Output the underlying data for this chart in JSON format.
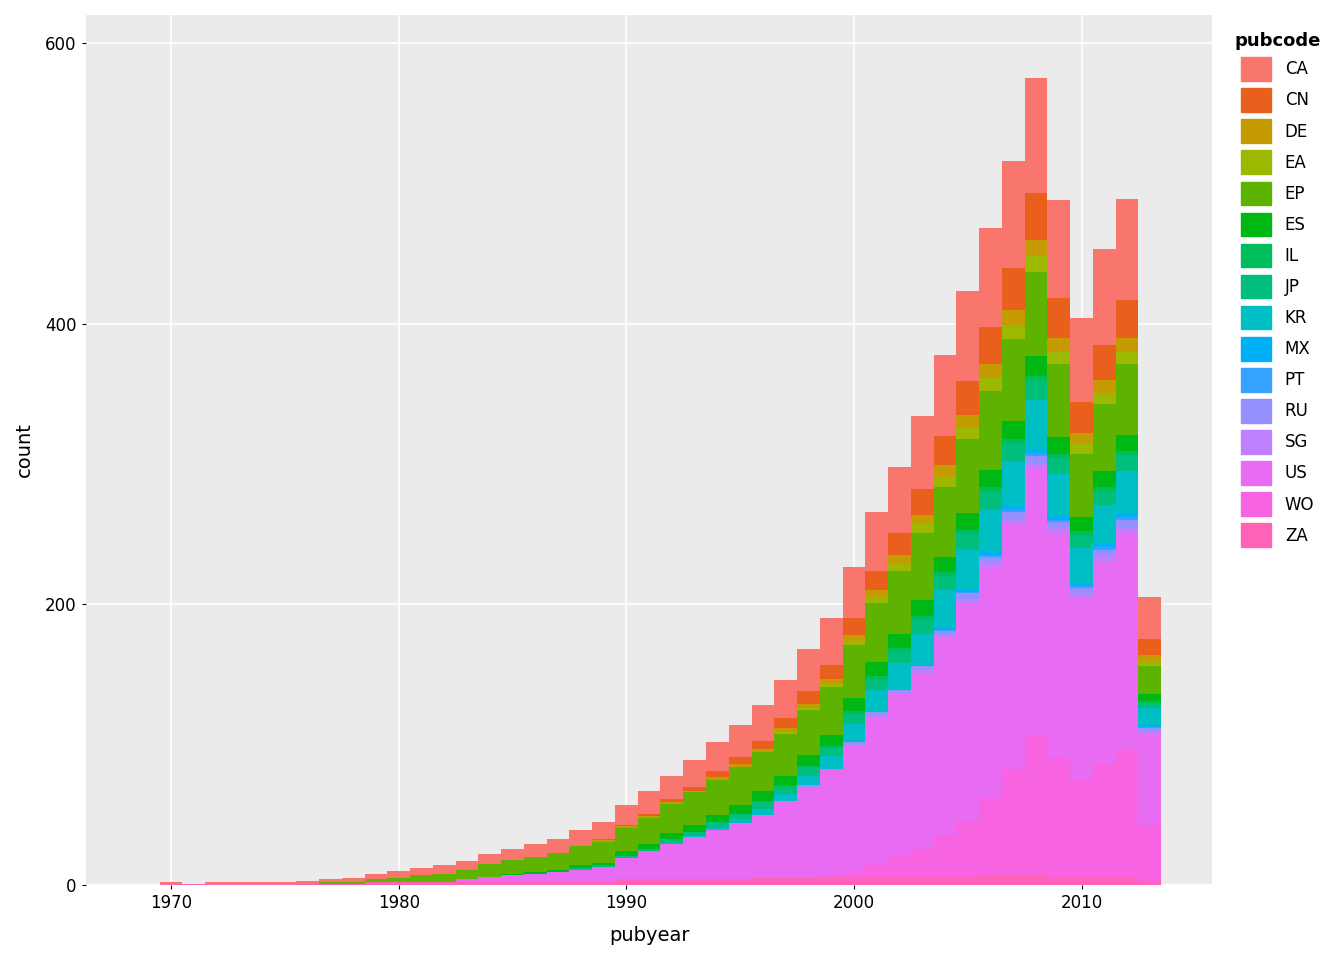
{
  "xlabel": "pubyear",
  "ylabel": "count",
  "legend_title": "pubcode",
  "plot_bg": "#EBEBEB",
  "grid_color": "#FFFFFF",
  "pubcodes_legend_order": [
    "CA",
    "CN",
    "DE",
    "EA",
    "EP",
    "ES",
    "IL",
    "JP",
    "KR",
    "MX",
    "PT",
    "RU",
    "SG",
    "US",
    "WO",
    "ZA"
  ],
  "pubcodes_stack_order": [
    "ZA",
    "WO",
    "US",
    "SG",
    "RU",
    "PT",
    "MX",
    "KR",
    "JP",
    "IL",
    "ES",
    "EP",
    "EA",
    "DE",
    "CN",
    "CA"
  ],
  "colors": {
    "CA": "#F8766D",
    "CN": "#E8601C",
    "DE": "#C49B00",
    "EA": "#9CB800",
    "EP": "#5EB300",
    "ES": "#00B813",
    "IL": "#00BD5C",
    "JP": "#00BF7D",
    "KR": "#00BFC4",
    "MX": "#00B0F6",
    "PT": "#35A2FF",
    "RU": "#9590FF",
    "SG": "#BF80FF",
    "US": "#E76BF3",
    "WO": "#F763E0",
    "ZA": "#FF63B6"
  },
  "years": [
    1969,
    1970,
    1971,
    1972,
    1973,
    1974,
    1975,
    1976,
    1977,
    1978,
    1979,
    1980,
    1981,
    1982,
    1983,
    1984,
    1985,
    1986,
    1987,
    1988,
    1989,
    1990,
    1991,
    1992,
    1993,
    1994,
    1995,
    1996,
    1997,
    1998,
    1999,
    2000,
    2001,
    2002,
    2003,
    2004,
    2005,
    2006,
    2007,
    2008,
    2009,
    2010,
    2011,
    2012,
    2013
  ],
  "data": {
    "ZA": [
      0,
      1,
      1,
      1,
      1,
      1,
      1,
      1,
      1,
      1,
      2,
      2,
      2,
      2,
      2,
      3,
      3,
      3,
      3,
      3,
      3,
      4,
      4,
      4,
      4,
      4,
      4,
      5,
      5,
      5,
      5,
      5,
      5,
      6,
      6,
      6,
      6,
      7,
      7,
      7,
      6,
      5,
      6,
      6,
      3
    ],
    "WO": [
      0,
      0,
      0,
      0,
      0,
      0,
      0,
      0,
      0,
      0,
      0,
      0,
      0,
      0,
      0,
      0,
      0,
      0,
      0,
      0,
      0,
      0,
      0,
      0,
      0,
      0,
      0,
      0,
      0,
      0,
      2,
      5,
      10,
      15,
      20,
      30,
      40,
      55,
      75,
      100,
      85,
      70,
      80,
      90,
      40
    ],
    "US": [
      0,
      0,
      0,
      0,
      0,
      0,
      0,
      0,
      0,
      0,
      0,
      0,
      0,
      0,
      2,
      3,
      4,
      5,
      6,
      8,
      10,
      15,
      20,
      25,
      30,
      35,
      40,
      45,
      55,
      65,
      75,
      90,
      105,
      115,
      125,
      140,
      155,
      165,
      175,
      190,
      160,
      130,
      145,
      155,
      65
    ],
    "SG": [
      0,
      0,
      0,
      0,
      0,
      0,
      0,
      0,
      0,
      0,
      0,
      0,
      0,
      0,
      0,
      0,
      0,
      0,
      0,
      0,
      0,
      0,
      0,
      0,
      0,
      0,
      0,
      0,
      0,
      0,
      0,
      0,
      1,
      1,
      2,
      2,
      3,
      3,
      4,
      4,
      4,
      3,
      4,
      4,
      2
    ],
    "RU": [
      0,
      0,
      0,
      0,
      0,
      0,
      0,
      0,
      0,
      0,
      0,
      0,
      0,
      0,
      0,
      0,
      0,
      0,
      0,
      0,
      0,
      0,
      0,
      0,
      0,
      0,
      0,
      0,
      0,
      1,
      1,
      2,
      2,
      2,
      3,
      3,
      4,
      4,
      5,
      5,
      4,
      4,
      4,
      5,
      2
    ],
    "PT": [
      0,
      0,
      0,
      0,
      0,
      0,
      0,
      0,
      0,
      0,
      0,
      0,
      0,
      0,
      0,
      0,
      0,
      0,
      0,
      0,
      0,
      0,
      0,
      0,
      0,
      0,
      0,
      0,
      0,
      0,
      0,
      0,
      0,
      0,
      0,
      1,
      1,
      1,
      1,
      2,
      1,
      1,
      2,
      2,
      1
    ],
    "MX": [
      0,
      0,
      0,
      0,
      0,
      0,
      0,
      0,
      0,
      0,
      0,
      0,
      0,
      0,
      0,
      0,
      0,
      0,
      0,
      0,
      0,
      0,
      0,
      0,
      0,
      0,
      0,
      0,
      0,
      0,
      0,
      1,
      1,
      1,
      1,
      2,
      2,
      3,
      3,
      3,
      3,
      2,
      2,
      3,
      1
    ],
    "KR": [
      0,
      0,
      0,
      0,
      0,
      0,
      0,
      0,
      0,
      0,
      0,
      0,
      0,
      0,
      0,
      0,
      0,
      0,
      0,
      0,
      0,
      0,
      0,
      1,
      1,
      2,
      3,
      4,
      5,
      7,
      9,
      12,
      15,
      18,
      22,
      26,
      28,
      30,
      32,
      35,
      30,
      25,
      28,
      30,
      12
    ],
    "JP": [
      0,
      0,
      0,
      0,
      0,
      0,
      0,
      0,
      0,
      0,
      0,
      0,
      0,
      0,
      0,
      0,
      0,
      0,
      0,
      1,
      1,
      2,
      2,
      3,
      3,
      4,
      4,
      5,
      5,
      6,
      6,
      7,
      8,
      9,
      10,
      10,
      11,
      12,
      12,
      13,
      11,
      9,
      10,
      11,
      4
    ],
    "IL": [
      0,
      0,
      0,
      0,
      0,
      0,
      0,
      0,
      0,
      0,
      0,
      0,
      0,
      0,
      0,
      0,
      0,
      0,
      0,
      0,
      0,
      0,
      0,
      0,
      0,
      0,
      0,
      1,
      1,
      1,
      1,
      2,
      2,
      2,
      3,
      3,
      3,
      4,
      4,
      4,
      3,
      3,
      3,
      3,
      1
    ],
    "ES": [
      0,
      0,
      0,
      0,
      0,
      0,
      0,
      0,
      0,
      0,
      0,
      0,
      0,
      0,
      0,
      0,
      1,
      1,
      2,
      2,
      2,
      3,
      3,
      4,
      5,
      5,
      6,
      7,
      7,
      8,
      8,
      9,
      10,
      10,
      11,
      11,
      12,
      12,
      13,
      14,
      12,
      10,
      11,
      12,
      5
    ],
    "EP": [
      0,
      0,
      0,
      0,
      0,
      0,
      0,
      0,
      1,
      1,
      2,
      3,
      5,
      6,
      7,
      9,
      10,
      11,
      12,
      14,
      15,
      17,
      19,
      21,
      23,
      25,
      27,
      28,
      30,
      32,
      34,
      38,
      42,
      45,
      48,
      50,
      53,
      56,
      58,
      60,
      52,
      45,
      48,
      50,
      20
    ],
    "EA": [
      0,
      0,
      0,
      0,
      0,
      0,
      0,
      0,
      0,
      0,
      0,
      0,
      0,
      0,
      0,
      0,
      0,
      0,
      0,
      0,
      0,
      0,
      0,
      0,
      0,
      0,
      0,
      0,
      1,
      1,
      2,
      3,
      4,
      5,
      6,
      7,
      8,
      9,
      10,
      11,
      9,
      7,
      8,
      9,
      4
    ],
    "DE": [
      0,
      0,
      0,
      0,
      0,
      0,
      0,
      0,
      0,
      0,
      0,
      0,
      0,
      0,
      0,
      0,
      0,
      0,
      0,
      0,
      1,
      1,
      1,
      1,
      1,
      2,
      2,
      2,
      3,
      3,
      4,
      4,
      5,
      6,
      7,
      8,
      9,
      10,
      11,
      12,
      10,
      8,
      9,
      10,
      4
    ],
    "CN": [
      0,
      0,
      0,
      0,
      0,
      0,
      0,
      0,
      0,
      0,
      0,
      0,
      0,
      0,
      0,
      0,
      0,
      0,
      0,
      0,
      1,
      1,
      2,
      2,
      3,
      4,
      5,
      6,
      7,
      9,
      10,
      12,
      14,
      16,
      18,
      21,
      24,
      27,
      30,
      33,
      28,
      22,
      25,
      27,
      11
    ],
    "CA": [
      0,
      1,
      0,
      1,
      1,
      1,
      1,
      2,
      2,
      3,
      4,
      5,
      5,
      6,
      6,
      7,
      8,
      9,
      10,
      11,
      12,
      14,
      16,
      17,
      19,
      21,
      23,
      25,
      27,
      30,
      33,
      37,
      42,
      47,
      52,
      58,
      64,
      70,
      76,
      82,
      70,
      60,
      68,
      72,
      30
    ]
  },
  "ylim": [
    0,
    620
  ],
  "yticks": [
    0,
    200,
    400,
    600
  ],
  "xticks": [
    1970,
    1980,
    1990,
    2000,
    2010
  ]
}
